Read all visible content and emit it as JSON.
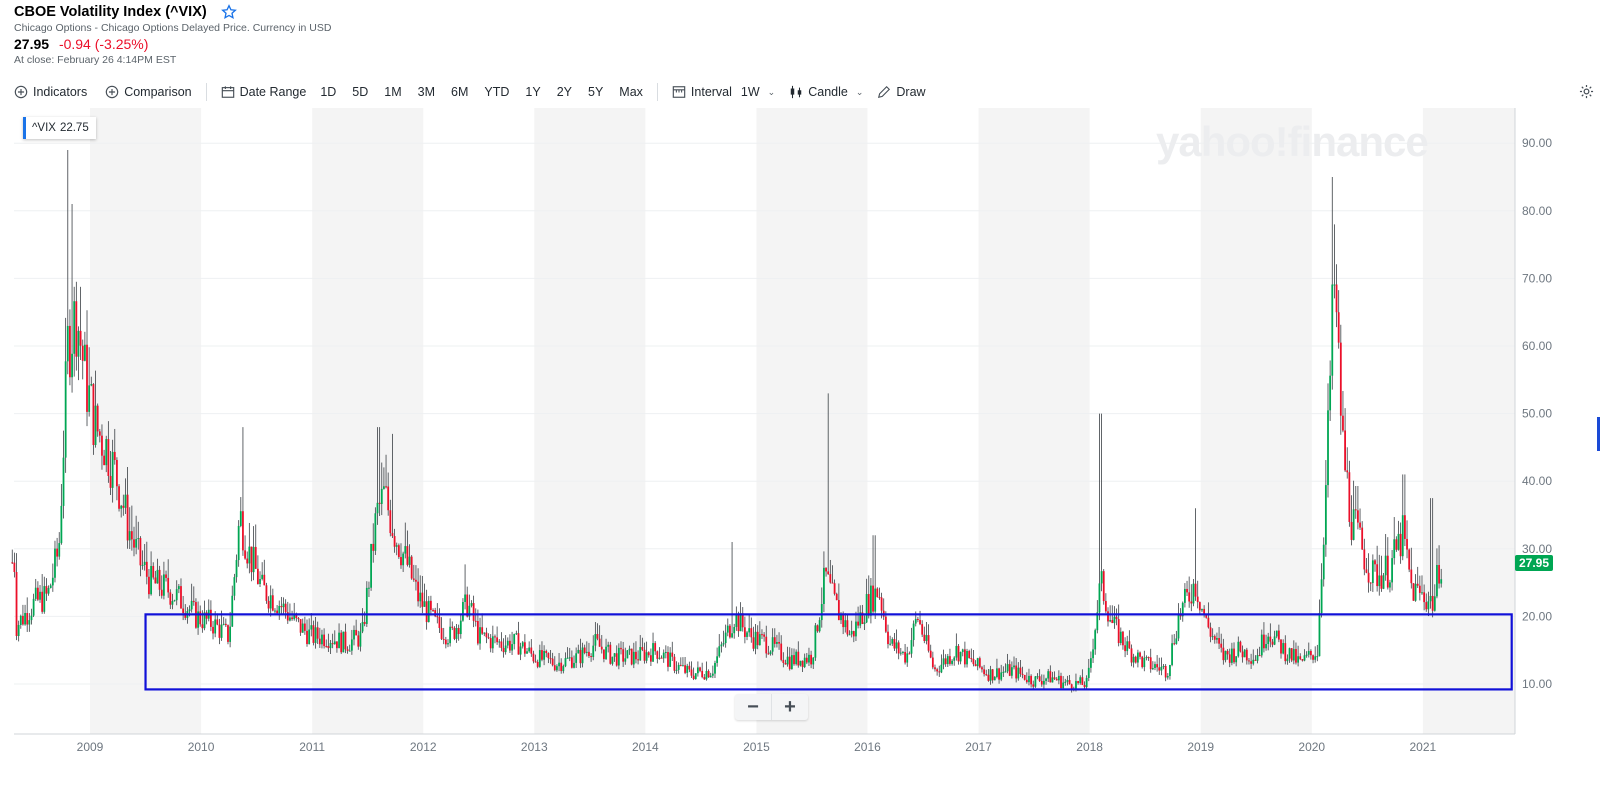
{
  "header": {
    "title": "CBOE Volatility Index (^VIX)",
    "subtitle": "Chicago Options - Chicago Options Delayed Price. Currency in USD",
    "price": "27.95",
    "change": "-0.94 (-3.25%)",
    "close_time": "At close: February 26 4:14PM EST"
  },
  "toolbar": {
    "indicators": "Indicators",
    "comparison": "Comparison",
    "date_range": "Date Range",
    "ranges": [
      "1D",
      "5D",
      "1M",
      "3M",
      "6M",
      "YTD",
      "1Y",
      "2Y",
      "5Y",
      "Max"
    ],
    "interval_label": "Interval",
    "interval_value": "1W",
    "chart_type": "Candle",
    "draw": "Draw"
  },
  "legend": {
    "symbol": "^VIX",
    "value": "22.75"
  },
  "last_price_tag": "27.95",
  "watermark": "yahoo!finance",
  "zoom": {
    "minus": "−",
    "plus": "+"
  },
  "colors": {
    "up": "#00a653",
    "down": "#eb0f29",
    "highlight": "#1010d8",
    "band": "#f4f4f4"
  },
  "chart_data": {
    "type": "candlestick",
    "interval": "weekly",
    "x_ticks": [
      "2009",
      "2010",
      "2011",
      "2012",
      "2013",
      "2014",
      "2015",
      "2016",
      "2017",
      "2018",
      "2019",
      "2020",
      "2021"
    ],
    "y_ticks": [
      "10.00",
      "20.00",
      "30.00",
      "40.00",
      "50.00",
      "60.00",
      "70.00",
      "80.00",
      "90.00"
    ],
    "y_range": [
      6,
      95
    ],
    "x_range": [
      2008.3,
      2021.85
    ],
    "highlight_box": {
      "x_from": 2009.5,
      "x_to": 2021.8,
      "y_from": 9.2,
      "y_to": 20.3
    },
    "approx_weekly_close": [
      [
        2008.33,
        18.5
      ],
      [
        2008.5,
        22
      ],
      [
        2008.62,
        23
      ],
      [
        2008.72,
        30
      ],
      [
        2008.8,
        60
      ],
      [
        2008.88,
        65
      ],
      [
        2008.96,
        55
      ],
      [
        2009.05,
        48
      ],
      [
        2009.15,
        45
      ],
      [
        2009.25,
        40
      ],
      [
        2009.35,
        33
      ],
      [
        2009.45,
        28
      ],
      [
        2009.55,
        25
      ],
      [
        2009.7,
        24
      ],
      [
        2009.85,
        22
      ],
      [
        2009.95,
        20
      ],
      [
        2010.1,
        19
      ],
      [
        2010.25,
        17
      ],
      [
        2010.35,
        35
      ],
      [
        2010.42,
        30
      ],
      [
        2010.55,
        24
      ],
      [
        2010.7,
        22
      ],
      [
        2010.85,
        19
      ],
      [
        2011.0,
        17
      ],
      [
        2011.15,
        17
      ],
      [
        2011.3,
        16
      ],
      [
        2011.45,
        17
      ],
      [
        2011.58,
        35
      ],
      [
        2011.65,
        38
      ],
      [
        2011.75,
        32
      ],
      [
        2011.85,
        28
      ],
      [
        2011.95,
        23
      ],
      [
        2012.1,
        19
      ],
      [
        2012.25,
        17
      ],
      [
        2012.4,
        22
      ],
      [
        2012.5,
        17
      ],
      [
        2012.7,
        16
      ],
      [
        2012.85,
        16
      ],
      [
        2013.0,
        14
      ],
      [
        2013.2,
        13
      ],
      [
        2013.4,
        14
      ],
      [
        2013.55,
        16
      ],
      [
        2013.7,
        14
      ],
      [
        2013.9,
        14
      ],
      [
        2014.1,
        15
      ],
      [
        2014.25,
        13
      ],
      [
        2014.4,
        11.5
      ],
      [
        2014.6,
        12
      ],
      [
        2014.8,
        20
      ],
      [
        2014.95,
        17
      ],
      [
        2015.1,
        16
      ],
      [
        2015.3,
        13.5
      ],
      [
        2015.5,
        14
      ],
      [
        2015.62,
        26
      ],
      [
        2015.7,
        22
      ],
      [
        2015.85,
        17
      ],
      [
        2016.0,
        22
      ],
      [
        2016.1,
        24
      ],
      [
        2016.2,
        16
      ],
      [
        2016.35,
        14
      ],
      [
        2016.45,
        20
      ],
      [
        2016.6,
        12
      ],
      [
        2016.8,
        15
      ],
      [
        2016.95,
        13
      ],
      [
        2017.1,
        11.5
      ],
      [
        2017.3,
        12
      ],
      [
        2017.5,
        10.5
      ],
      [
        2017.65,
        11
      ],
      [
        2017.8,
        10
      ],
      [
        2017.98,
        10
      ],
      [
        2018.1,
        25
      ],
      [
        2018.2,
        19
      ],
      [
        2018.35,
        15
      ],
      [
        2018.5,
        13
      ],
      [
        2018.7,
        12
      ],
      [
        2018.8,
        20
      ],
      [
        2018.95,
        25
      ],
      [
        2019.05,
        19
      ],
      [
        2019.2,
        14
      ],
      [
        2019.35,
        15
      ],
      [
        2019.5,
        14
      ],
      [
        2019.6,
        18
      ],
      [
        2019.75,
        15
      ],
      [
        2019.9,
        13
      ],
      [
        2020.05,
        15
      ],
      [
        2020.13,
        40
      ],
      [
        2020.2,
        70
      ],
      [
        2020.28,
        45
      ],
      [
        2020.35,
        35
      ],
      [
        2020.45,
        30
      ],
      [
        2020.55,
        26
      ],
      [
        2020.7,
        27
      ],
      [
        2020.82,
        32
      ],
      [
        2020.9,
        24
      ],
      [
        2021.0,
        23
      ],
      [
        2021.1,
        22
      ],
      [
        2021.15,
        28
      ]
    ]
  }
}
